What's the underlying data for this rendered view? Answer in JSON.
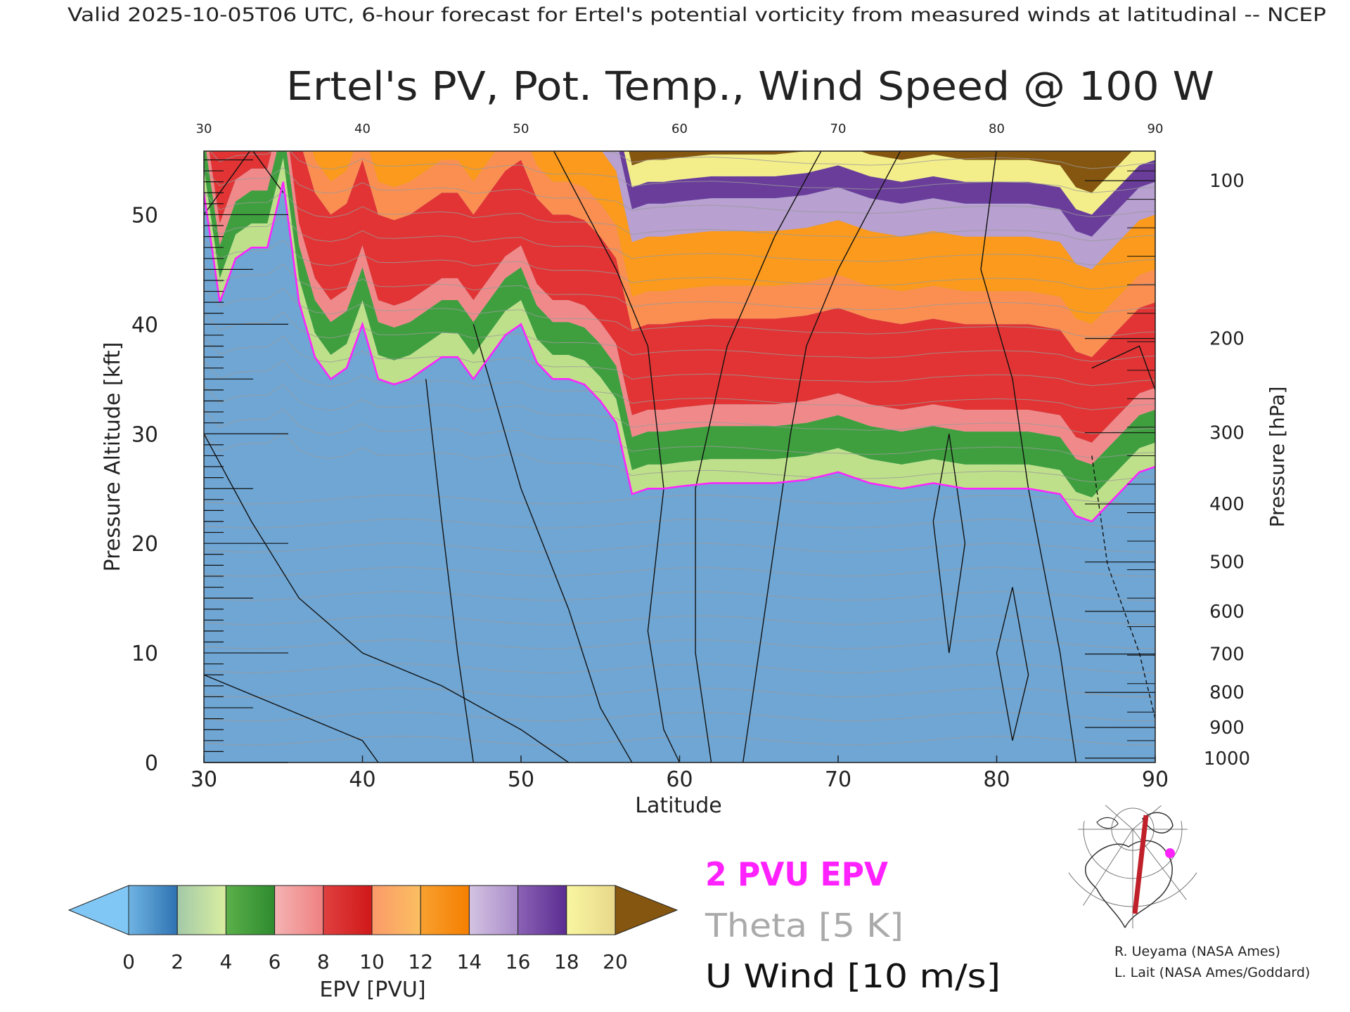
{
  "header": {
    "valid_line": "Valid 2025-10-05T06 UTC, 6-hour forecast for Ertel's potential vorticity from measured winds at latitudinal -- NCEP"
  },
  "chart_data": {
    "type": "heatmap",
    "title": "Ertel's PV, Pot. Temp., Wind Speed @ 100 W",
    "xlabel": "Latitude",
    "ylabel_left": "Pressure Altitude [kft]",
    "ylabel_right": "Pressure [hPa]",
    "xlim": [
      30,
      90
    ],
    "ylim": [
      0,
      55.8
    ],
    "x_ticks": [
      "30",
      "40",
      "50",
      "60",
      "70",
      "80",
      "90"
    ],
    "top_ticks": [
      "30",
      "40",
      "50",
      "60",
      "70",
      "80",
      "90"
    ],
    "y_ticks": [
      "0",
      "10",
      "20",
      "30",
      "40",
      "50"
    ],
    "pressure_ticks": [
      {
        "label": "100",
        "alt": 53.1
      },
      {
        "label": "200",
        "alt": 38.7
      },
      {
        "label": "300",
        "alt": 30.1
      },
      {
        "label": "400",
        "alt": 23.6
      },
      {
        "label": "500",
        "alt": 18.3
      },
      {
        "label": "600",
        "alt": 13.8
      },
      {
        "label": "700",
        "alt": 9.9
      },
      {
        "label": "800",
        "alt": 6.4
      },
      {
        "label": "900",
        "alt": 3.2
      },
      {
        "label": "1000",
        "alt": 0.4
      }
    ],
    "tropopause_2pvu_kft": {
      "lat": [
        30,
        31,
        32,
        33,
        34,
        35,
        36,
        37,
        38,
        39,
        40,
        41,
        42,
        43,
        44,
        45,
        46,
        47,
        48,
        49,
        50,
        51,
        52,
        53,
        54,
        55,
        56,
        57,
        58,
        59,
        60,
        62,
        64,
        66,
        68,
        70,
        72,
        74,
        76,
        78,
        80,
        82,
        84,
        85,
        86,
        87,
        88,
        89,
        90
      ],
      "alt": [
        52,
        42,
        46,
        47,
        47,
        53,
        42,
        37,
        35,
        36,
        40,
        35,
        34.5,
        35,
        36,
        37,
        37,
        35,
        37,
        39,
        40,
        36.5,
        35,
        35,
        34.5,
        33,
        31,
        24.5,
        25,
        25,
        25.2,
        25.5,
        25.5,
        25.5,
        25.8,
        26.5,
        25.5,
        25,
        25.5,
        25,
        25,
        25,
        24.5,
        22.5,
        22,
        23.5,
        25,
        26.5,
        27
      ]
    },
    "epv_bands": [
      {
        "pvu": "0-2",
        "color": "#6fa6d4",
        "lower_offset_kft": -30,
        "upper_offset_kft": 0
      },
      {
        "pvu": "2-4",
        "color": "#bfe08a",
        "lower_offset_kft": 0,
        "upper_offset_kft": 2.2
      },
      {
        "pvu": "4-6",
        "color": "#3f9f3f",
        "lower_offset_kft": 2.2,
        "upper_offset_kft": 5.2
      },
      {
        "pvu": "6-8",
        "color": "#f08a8a",
        "lower_offset_kft": 5.2,
        "upper_offset_kft": 7.2
      },
      {
        "pvu": "8-10",
        "color": "#e23434",
        "lower_offset_kft": 7.2,
        "upper_offset_kft": 15
      },
      {
        "pvu": "10-12",
        "color": "#fb8f52",
        "lower_offset_kft": 15,
        "upper_offset_kft": 18
      },
      {
        "pvu": "12-14",
        "color": "#fb9a1c",
        "lower_offset_kft": 18,
        "upper_offset_kft": 23
      },
      {
        "pvu": "14-16",
        "color": "#b8a0d0",
        "lower_offset_kft": 23,
        "upper_offset_kft": 26
      },
      {
        "pvu": "16-18",
        "color": "#6a3d9a",
        "lower_offset_kft": 26,
        "upper_offset_kft": 28
      },
      {
        "pvu": "18-20",
        "color": "#f4ee8a",
        "lower_offset_kft": 28,
        "upper_offset_kft": 30
      },
      {
        "pvu": ">20",
        "color": "#85560f",
        "lower_offset_kft": 30,
        "upper_offset_kft": 60
      }
    ],
    "colorbar": {
      "label": "EPV [PVU]",
      "ticks": [
        "0",
        "2",
        "4",
        "6",
        "8",
        "10",
        "12",
        "14",
        "16",
        "18",
        "20"
      ],
      "under_color": "#80c7f5",
      "over_color": "#85560f",
      "segments": [
        [
          "#6fb4e3",
          "#2f72b2"
        ],
        [
          "#a3c9a8",
          "#d9eea0"
        ],
        [
          "#5bb04a",
          "#2e8b2e"
        ],
        [
          "#f4b3b3",
          "#f08080"
        ],
        [
          "#e04040",
          "#d01818"
        ],
        [
          "#fb9a6a",
          "#fbbf60"
        ],
        [
          "#f8a030",
          "#f57f00"
        ],
        [
          "#d4c3e2",
          "#a98bc9"
        ],
        [
          "#8a62b5",
          "#5b2c91"
        ],
        [
          "#f8f6a0",
          "#e8d88a"
        ]
      ]
    },
    "legend": [
      {
        "text": "2 PVU EPV",
        "color": "#ff22ff"
      },
      {
        "text": "Theta [5 K]",
        "color": "#aaaaaa"
      },
      {
        "text": "U Wind [10 m/s]",
        "color": "#111111"
      }
    ]
  },
  "credits": [
    "R. Ueyama (NASA Ames)",
    "L. Lait (NASA Ames/Goddard)"
  ]
}
